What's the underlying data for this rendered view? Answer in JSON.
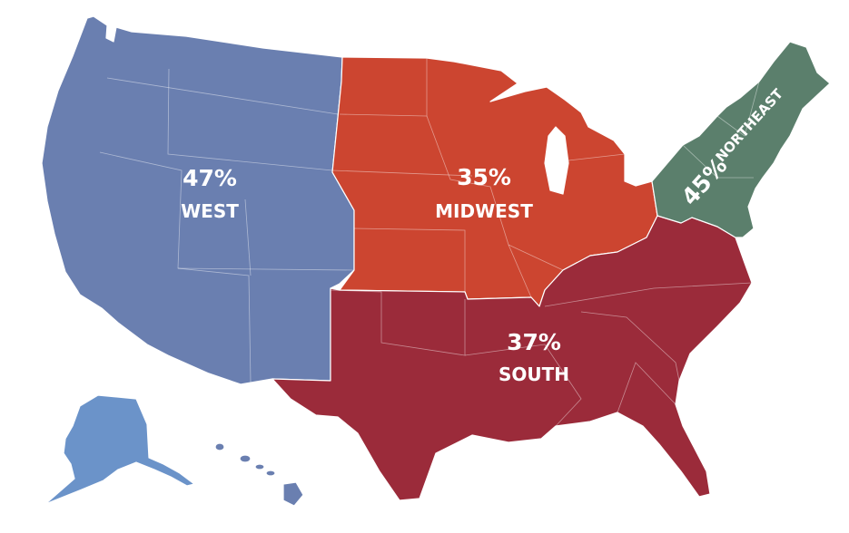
{
  "map": {
    "colors": {
      "west": "#6a7fb0",
      "alaska": "#6b93c9",
      "midwest": "#cc4530",
      "south": "#9b2b3a",
      "northeast": "#5b7f6c",
      "background": "#ffffff"
    },
    "regions": {
      "west": {
        "percent": "47%",
        "name": "WEST"
      },
      "midwest": {
        "percent": "35%",
        "name": "MIDWEST"
      },
      "south": {
        "percent": "37%",
        "name": "SOUTH"
      },
      "northeast": {
        "percent": "45%",
        "name": "NORTHEAST"
      }
    }
  }
}
